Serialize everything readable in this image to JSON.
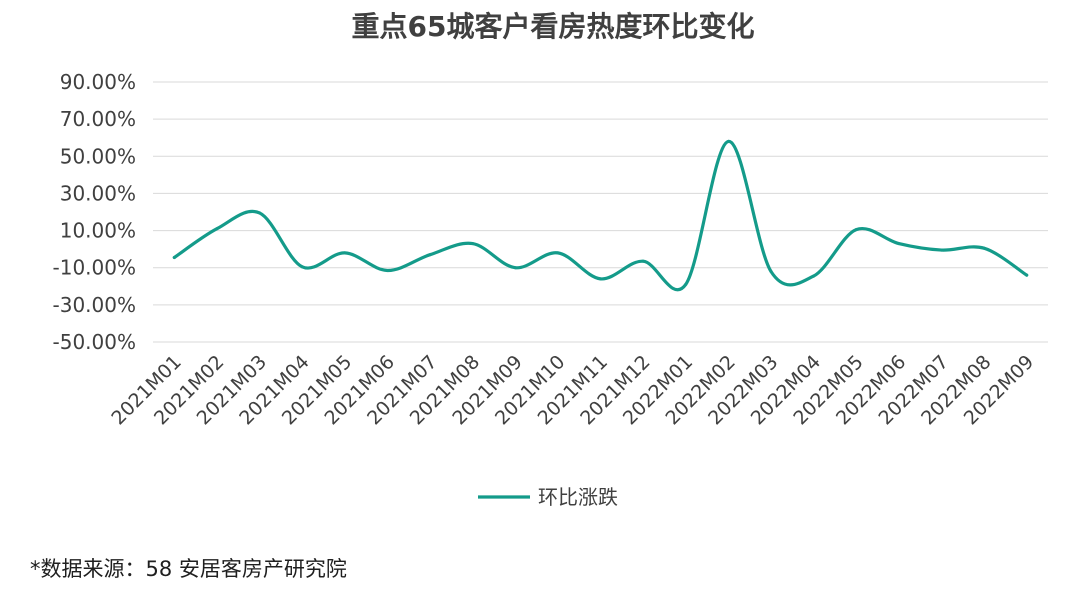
{
  "chart_data": {
    "type": "line",
    "title": "重点65城客户看房热度环比变化",
    "xlabel": "",
    "ylabel": "",
    "categories": [
      "2021M01",
      "2021M02",
      "2021M03",
      "2021M04",
      "2021M05",
      "2021M06",
      "2021M07",
      "2021M08",
      "2021M09",
      "2021M10",
      "2021M11",
      "2021M12",
      "2022M01",
      "2022M02",
      "2022M03",
      "2022M04",
      "2022M05",
      "2022M06",
      "2022M07",
      "2022M08",
      "2022M09"
    ],
    "series": [
      {
        "name": "环比涨跌",
        "color": "#149b8a",
        "values": [
          -4.5,
          11.0,
          19.5,
          -9.5,
          -2.0,
          -11.5,
          -3.0,
          3.0,
          -10.0,
          -2.0,
          -16.0,
          -6.5,
          -19.0,
          58.0,
          -12.0,
          -14.5,
          10.5,
          3.0,
          -0.5,
          0.5,
          -14.0
        ]
      }
    ],
    "yticks": [
      "90.00%",
      "70.00%",
      "50.00%",
      "30.00%",
      "10.00%",
      "-10.00%",
      "-30.00%",
      "-50.00%"
    ],
    "ylim": [
      -50,
      90
    ],
    "grid": true,
    "legend": "bottom"
  },
  "footnote": "*数据来源：58 安居客房产研究院"
}
